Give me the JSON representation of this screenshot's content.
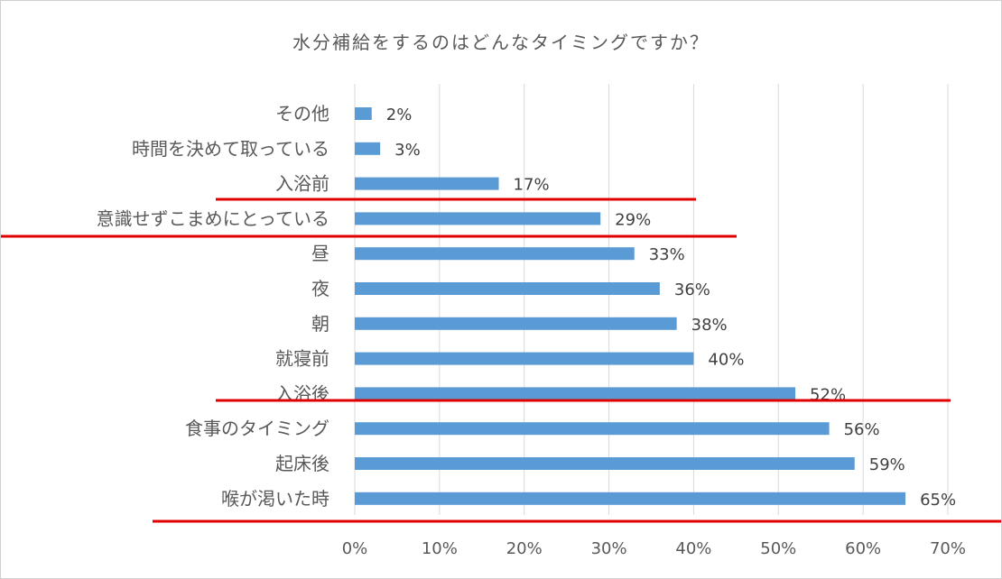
{
  "chart_data": {
    "type": "bar",
    "orientation": "horizontal",
    "title": "水分補給をするのはどんなタイミングですか？",
    "categories": [
      "その他",
      "時間を決めて取っている",
      "入浴前",
      "意識せずこまめにとっている",
      "昼",
      "夜",
      "朝",
      "就寝前",
      "入浴後",
      "食事のタイミング",
      "起床後",
      "喉が渇いた時"
    ],
    "values": [
      2,
      3,
      17,
      29,
      33,
      36,
      38,
      40,
      52,
      56,
      59,
      65
    ],
    "value_labels": [
      "2%",
      "3%",
      "17%",
      "29%",
      "33%",
      "36%",
      "38%",
      "40%",
      "52%",
      "56%",
      "59%",
      "65%"
    ],
    "xlim": [
      0,
      70
    ],
    "x_ticks": [
      0,
      10,
      20,
      30,
      40,
      50,
      60,
      70
    ],
    "x_tick_labels": [
      "0%",
      "10%",
      "20%",
      "30%",
      "40%",
      "50%",
      "60%",
      "70%"
    ],
    "grid": "vertical",
    "legend": "none",
    "bar_color": "#5b9bd5",
    "annotation_color": "#e00000"
  }
}
